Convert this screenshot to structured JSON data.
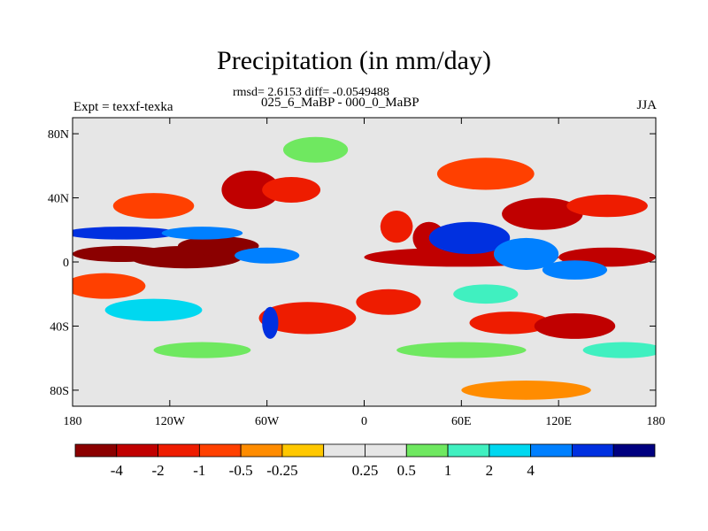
{
  "figure": {
    "title": "Precipitation (in mm/day)",
    "stats": "rmsd= 2.6153 diff= -0.0549488",
    "period": "025_6_MaBP - 000_0_MaBP",
    "left_label": "Expt = texxf-texka",
    "right_label": "JJA"
  },
  "map": {
    "projection": "cylindrical equidistant",
    "lon_range": [
      -180,
      180
    ],
    "lat_range": [
      -90,
      90
    ],
    "lat_tick_labels": [
      {
        "label": "80N",
        "lat": 80
      },
      {
        "label": "40N",
        "lat": 40
      },
      {
        "label": "0",
        "lat": 0
      },
      {
        "label": "40S",
        "lat": -40
      },
      {
        "label": "80S",
        "lat": -80
      }
    ],
    "lon_tick_labels": [
      {
        "label": "180",
        "lon": -180
      },
      {
        "label": "120W",
        "lon": -120
      },
      {
        "label": "60W",
        "lon": -60
      },
      {
        "label": "0",
        "lon": 0
      },
      {
        "label": "60E",
        "lon": 60
      },
      {
        "label": "120E",
        "lon": 120
      },
      {
        "label": "180",
        "lon": 180
      }
    ],
    "background_color": "#e6e6e6",
    "anomaly_regions": [
      {
        "lon": -150,
        "lat": 5,
        "rx": 30,
        "ry": 5,
        "value": -4
      },
      {
        "lon": -110,
        "lat": 3,
        "rx": 35,
        "ry": 7,
        "value": -4
      },
      {
        "lon": -90,
        "lat": 10,
        "rx": 25,
        "ry": 6,
        "value": -4
      },
      {
        "lon": 60,
        "lat": 3,
        "rx": 60,
        "ry": 6,
        "value": -3
      },
      {
        "lon": 150,
        "lat": 3,
        "rx": 30,
        "ry": 6,
        "value": -3
      },
      {
        "lon": -70,
        "lat": 45,
        "rx": 18,
        "ry": 12,
        "value": -3
      },
      {
        "lon": -45,
        "lat": 45,
        "rx": 18,
        "ry": 8,
        "value": -2
      },
      {
        "lon": 110,
        "lat": 30,
        "rx": 25,
        "ry": 10,
        "value": -3
      },
      {
        "lon": 20,
        "lat": 22,
        "rx": 10,
        "ry": 10,
        "value": -2
      },
      {
        "lon": 40,
        "lat": 15,
        "rx": 10,
        "ry": 10,
        "value": -3
      },
      {
        "lon": 150,
        "lat": 35,
        "rx": 25,
        "ry": 7,
        "value": -2
      },
      {
        "lon": -35,
        "lat": -35,
        "rx": 30,
        "ry": 10,
        "value": -2
      },
      {
        "lon": 15,
        "lat": -25,
        "rx": 20,
        "ry": 8,
        "value": -2
      },
      {
        "lon": 90,
        "lat": -38,
        "rx": 25,
        "ry": 7,
        "value": -2
      },
      {
        "lon": 130,
        "lat": -40,
        "rx": 25,
        "ry": 8,
        "value": -3
      },
      {
        "lon": -160,
        "lat": -15,
        "rx": 25,
        "ry": 8,
        "value": -1
      },
      {
        "lon": -130,
        "lat": 35,
        "rx": 25,
        "ry": 8,
        "value": -1
      },
      {
        "lon": 75,
        "lat": 55,
        "rx": 30,
        "ry": 10,
        "value": -1
      },
      {
        "lon": -150,
        "lat": 18,
        "rx": 35,
        "ry": 4,
        "value": 4
      },
      {
        "lon": -100,
        "lat": 18,
        "rx": 25,
        "ry": 4,
        "value": 3
      },
      {
        "lon": -60,
        "lat": 4,
        "rx": 20,
        "ry": 5,
        "value": 3
      },
      {
        "lon": 65,
        "lat": 15,
        "rx": 25,
        "ry": 10,
        "value": 4
      },
      {
        "lon": 100,
        "lat": 5,
        "rx": 20,
        "ry": 10,
        "value": 3
      },
      {
        "lon": 130,
        "lat": -5,
        "rx": 20,
        "ry": 6,
        "value": 3
      },
      {
        "lon": -58,
        "lat": -38,
        "rx": 5,
        "ry": 10,
        "value": 4
      },
      {
        "lon": -130,
        "lat": -30,
        "rx": 30,
        "ry": 7,
        "value": 2
      },
      {
        "lon": 75,
        "lat": -20,
        "rx": 20,
        "ry": 6,
        "value": 1
      },
      {
        "lon": 160,
        "lat": -55,
        "rx": 25,
        "ry": 5,
        "value": 1
      },
      {
        "lon": -100,
        "lat": -55,
        "rx": 30,
        "ry": 5,
        "value": 0.5
      },
      {
        "lon": 60,
        "lat": -55,
        "rx": 40,
        "ry": 5,
        "value": 0.5
      },
      {
        "lon": -30,
        "lat": 70,
        "rx": 20,
        "ry": 8,
        "value": 0.5
      },
      {
        "lon": 100,
        "lat": -80,
        "rx": 40,
        "ry": 6,
        "value": -0.5
      }
    ]
  },
  "colorbar": {
    "colors": [
      "#8b0000",
      "#c00000",
      "#ee1c00",
      "#ff4000",
      "#ff8c00",
      "#ffc800",
      "#e6e6e6",
      "#e6e6e6",
      "#6fe860",
      "#40f0c0",
      "#00d8f0",
      "#0080ff",
      "#0030e0",
      "#000080"
    ],
    "labels": [
      "-4",
      "-2",
      "-1",
      "-0.5",
      "-0.25",
      "0.25",
      "0.5",
      "1",
      "2",
      "4"
    ]
  }
}
